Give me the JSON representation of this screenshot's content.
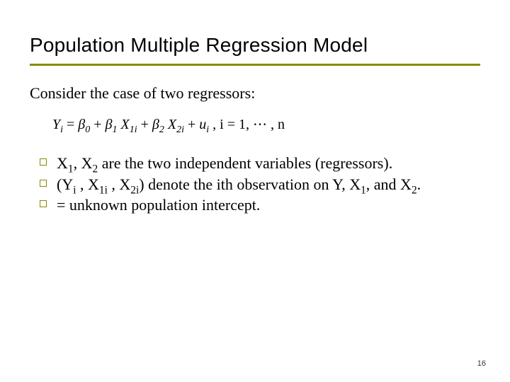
{
  "colors": {
    "accent": "#8a8a00",
    "text": "#000000",
    "background": "#ffffff"
  },
  "typography": {
    "title_font": "Arial",
    "body_font": "Times New Roman",
    "title_size_pt": 28,
    "body_size_pt": 22,
    "equation_size_pt": 20
  },
  "title": "Population Multiple Regression Model",
  "intro": "Consider the case of two regressors:",
  "equation": {
    "lhs": "Y",
    "lhs_sub": "i",
    "beta0": "β",
    "beta0_sub": "0",
    "beta1": "β",
    "beta1_sub": "1",
    "x1": "X",
    "x1_sub": "1i",
    "beta2": "β",
    "beta2_sub": "2",
    "x2": "X",
    "x2_sub": "2i",
    "u": "u",
    "u_sub": "i",
    "tail": ", i = 1, ⋯ , n"
  },
  "bullets": [
    {
      "pre": "X",
      "sub1": "1",
      "mid1": ", X",
      "sub2": "2",
      "post": " are the two independent variables (regressors)."
    },
    {
      "pre": "(Y",
      "sub1": "i",
      "mid1": " , X",
      "sub2": "1i",
      "mid2": " , X",
      "sub3": "2i",
      "mid3": ") denote the ith observation on Y, X",
      "sub4": "1",
      "mid4": ", and X",
      "sub5": "2",
      "post": "."
    },
    {
      "post": " = unknown population intercept."
    }
  ],
  "page_number": "16"
}
